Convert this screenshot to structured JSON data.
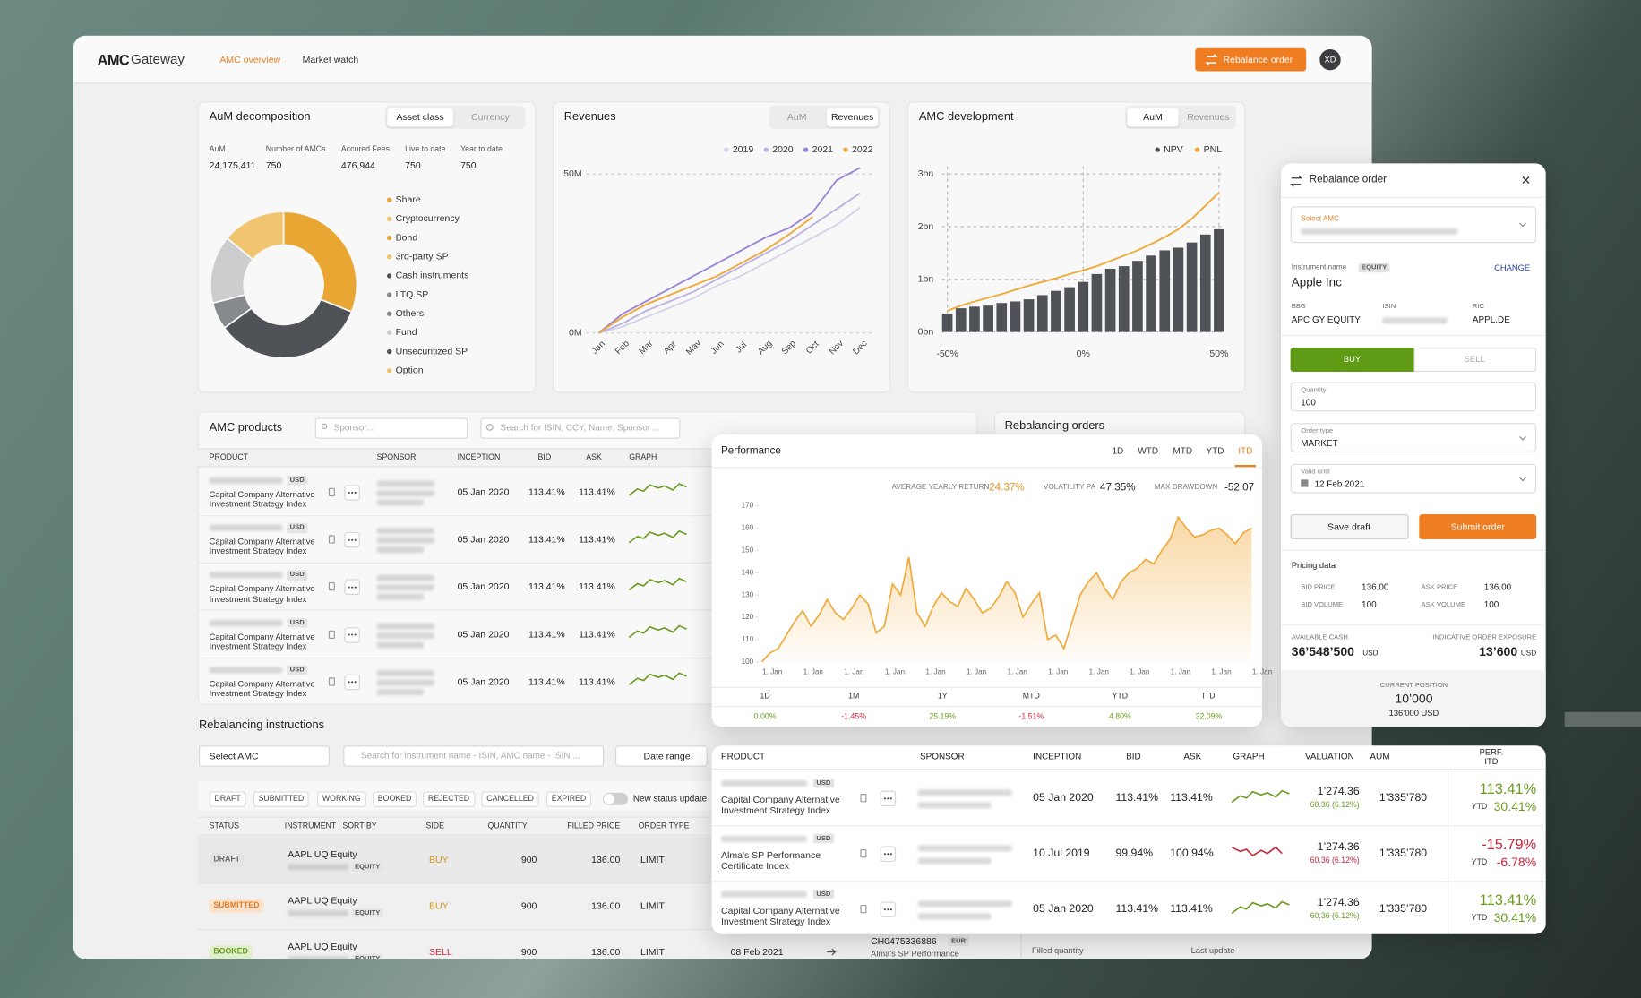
{
  "header": {
    "logo": [
      "AMC",
      "Gateway"
    ],
    "nav": [
      "AMC overview",
      "Market watch"
    ],
    "button": "Rebalance order",
    "avatar": "XD"
  },
  "aum": {
    "title": "AuM decomposition",
    "tabs": [
      "Asset class",
      "Currency"
    ],
    "stats": [
      [
        "AuM",
        "24,175,411"
      ],
      [
        "Number of AMCs",
        "750"
      ],
      [
        "Accured Fees",
        "476,944"
      ],
      [
        "Live to date",
        "750"
      ],
      [
        "Year to date",
        "750"
      ]
    ]
  },
  "revenues": {
    "title": "Revenues",
    "tabs": [
      "AuM",
      "Revenues"
    ]
  },
  "development": {
    "title": "AMC development",
    "tabs": [
      "AuM",
      "Revenues"
    ]
  },
  "chart_data": [
    {
      "type": "pie",
      "categories": [
        "Share",
        "Cryptocurrency",
        "Bond",
        "3rd-party SP",
        "Cash instruments",
        "LTQ SP",
        "Others",
        "Fund",
        "Unsecuritized SP",
        "Option"
      ],
      "values": [
        31,
        0,
        0,
        0,
        34,
        6,
        0,
        15,
        0,
        14
      ],
      "colors": [
        "#eaa632",
        "#f1c46f",
        "#eaa632",
        "#f1c46f",
        "#4f5358",
        "#86898d",
        "#86898d",
        "#cbcdcf",
        "#4f5358",
        "#f1c46f"
      ]
    },
    {
      "type": "line",
      "categories": [
        "Jan",
        "Feb",
        "Mar",
        "Apr",
        "May",
        "Jun",
        "Jul",
        "Aug",
        "Sep",
        "Oct",
        "Nov",
        "Dec"
      ],
      "series": [
        {
          "name": "2019",
          "color": "#d6d3e8",
          "values": [
            0,
            2,
            5,
            8,
            11,
            15,
            18,
            22,
            26,
            30,
            34,
            39.5
          ]
        },
        {
          "name": "2020",
          "color": "#bcb3e2",
          "values": [
            0,
            3,
            7,
            10,
            13,
            17,
            21,
            25,
            29,
            34,
            39,
            44
          ]
        },
        {
          "name": "2021",
          "color": "#9a85d9",
          "values": [
            0,
            6,
            10,
            14,
            18,
            22,
            26,
            30,
            33,
            38,
            48,
            52
          ]
        },
        {
          "name": "2022",
          "color": "#f0a836",
          "values": [
            0,
            5,
            9,
            12,
            15,
            18,
            22,
            26,
            31,
            36.5,
            null,
            null
          ]
        }
      ],
      "ylim": [
        0,
        55
      ],
      "yticks": [
        {
          "value": 0,
          "label": "0M"
        },
        {
          "value": 50,
          "label": "50M"
        }
      ],
      "grid": true
    },
    {
      "type": "bar",
      "x": [
        -50,
        -45,
        -40,
        -35,
        -30,
        -25,
        -20,
        -15,
        -10,
        -5,
        0,
        5,
        10,
        15,
        20,
        25,
        30,
        35,
        40,
        45,
        50
      ],
      "series": [
        {
          "name": "NPV",
          "color": "#4f5358",
          "values": [
            0.35,
            0.45,
            0.48,
            0.5,
            0.55,
            0.58,
            0.62,
            0.7,
            0.78,
            0.85,
            0.95,
            1.1,
            1.2,
            1.25,
            1.35,
            1.45,
            1.55,
            1.6,
            1.7,
            1.85,
            1.95
          ]
        },
        {
          "name": "PNL",
          "color": "#f0a836",
          "type": "line",
          "values": [
            0.4,
            0.5,
            0.58,
            0.65,
            0.72,
            0.8,
            0.88,
            0.95,
            1.02,
            1.1,
            1.17,
            1.25,
            1.35,
            1.45,
            1.55,
            1.67,
            1.8,
            1.95,
            2.15,
            2.4,
            2.65
          ]
        }
      ],
      "xlim": [
        -52,
        52
      ],
      "ylim": [
        0,
        3.15
      ],
      "xticks": [
        {
          "value": -50,
          "label": "-50%"
        },
        {
          "value": 0,
          "label": "0%"
        },
        {
          "value": 50,
          "label": "50%"
        }
      ],
      "yticks": [
        {
          "value": 0,
          "label": "0bn"
        },
        {
          "value": 1,
          "label": "1bn"
        },
        {
          "value": 2,
          "label": "2bn"
        },
        {
          "value": 3,
          "label": "3bn"
        }
      ],
      "grid": true
    },
    {
      "type": "area",
      "categories": [
        "1. Jan",
        null,
        null,
        null,
        null,
        "1. Jan",
        null,
        null,
        null,
        null,
        "1. Jan",
        null,
        null,
        null,
        null,
        "1. Jan",
        null,
        null,
        null,
        null,
        "1. Jan",
        null,
        null,
        null,
        null,
        "1. Jan",
        null,
        null,
        null,
        null,
        "1. Jan",
        null,
        null,
        null,
        null,
        "1. Jan",
        null,
        null,
        null,
        null,
        "1. Jan",
        null,
        null,
        null,
        null,
        "1. Jan",
        null,
        null,
        null,
        null,
        "1. Jan",
        null,
        null,
        null,
        null,
        "1. Jan",
        null,
        null,
        null,
        null,
        "1. Jan"
      ],
      "values": [
        100,
        104,
        106,
        112,
        118,
        123,
        116,
        121,
        128,
        122,
        119,
        124,
        130,
        126,
        113,
        116,
        135,
        130,
        147,
        122,
        116,
        125,
        131,
        127,
        125,
        133,
        128,
        122,
        124,
        129,
        136,
        131,
        120,
        126,
        131,
        110,
        112,
        106,
        118,
        130,
        136,
        140,
        133,
        128,
        136,
        140,
        142,
        146,
        144,
        150,
        155,
        165,
        160,
        156,
        157,
        159,
        160,
        157,
        153,
        158,
        160
      ],
      "color": "#f0a836",
      "ylim": [
        100,
        170
      ],
      "yticks": [
        100,
        110,
        120,
        130,
        140,
        150,
        160,
        170
      ]
    }
  ],
  "products": {
    "title": "AMC products",
    "sponsor_placeholder": "Sponsor...",
    "search_placeholder": "Search for ISIN, CCY, Name, Sponsor ...",
    "columns": [
      "PRODUCT",
      "SPONSOR",
      "INCEPTION",
      "BID",
      "ASK",
      "GRAPH"
    ],
    "rows": [
      {
        "ccy": "USD",
        "name": "Capital Company Alternative Investment Strategy Index",
        "inception": "05 Jan 2020",
        "bid": "113.41%",
        "ask": "113.41%"
      },
      {
        "ccy": "USD",
        "name": "Capital Company Alternative Investment Strategy Index",
        "inception": "05 Jan 2020",
        "bid": "113.41%",
        "ask": "113.41%"
      },
      {
        "ccy": "USD",
        "name": "Capital Company Alternative Investment Strategy Index",
        "inception": "05 Jan 2020",
        "bid": "113.41%",
        "ask": "113.41%"
      },
      {
        "ccy": "USD",
        "name": "Capital Company Alternative Investment Strategy Index",
        "inception": "05 Jan 2020",
        "bid": "113.41%",
        "ask": "113.41%"
      },
      {
        "ccy": "USD",
        "name": "Capital Company Alternative Investment Strategy Index",
        "inception": "05 Jan 2020",
        "bid": "113.41%",
        "ask": "113.41%"
      }
    ]
  },
  "orders": {
    "title": "Rebalancing orders"
  },
  "instructions": {
    "title": "Rebalancing instructions",
    "select": "Select AMC",
    "search": "Search for instrument name - ISIN, AMC name - ISIN ...",
    "date": "Date range",
    "filters": [
      "DRAFT",
      "SUBMITTED",
      "WORKING",
      "BOOKED",
      "REJECTED",
      "CANCELLED",
      "EXPIRED"
    ],
    "toggle": "New status update",
    "columns": [
      "STATUS",
      "INSTRUMENT : SORT BY",
      "SIDE",
      "QUANTITY",
      "FILLED PRICE",
      "ORDER TYPE"
    ],
    "rows": [
      {
        "status": "DRAFT",
        "status_color": "#6b6b6b",
        "status_bg": "#e2e2e2",
        "instrument": "AAPL UQ Equity",
        "tag": "EQUITY",
        "side": "BUY",
        "side_color": "#d19a1e",
        "quantity": "900",
        "price": "136.00",
        "type": "LIMIT"
      },
      {
        "status": "SUBMITTED",
        "status_color": "#e07a24",
        "status_bg": "#fde2cb",
        "instrument": "AAPL UQ Equity",
        "tag": "EQUITY",
        "side": "BUY",
        "side_color": "#d19a1e",
        "quantity": "900",
        "price": "136.00",
        "type": "LIMIT"
      },
      {
        "status": "BOOKED",
        "status_color": "#6a9b1e",
        "status_bg": "#e0efcb",
        "instrument": "AAPL UQ Equity",
        "tag": "EQUITY",
        "side": "SELL",
        "side_color": "#d0263c",
        "quantity": "900",
        "price": "136.00",
        "type": "LIMIT"
      }
    ],
    "detail": {
      "date": "08 Feb 2021",
      "isin": "CH0475336886",
      "ccy": "EUR",
      "name": "Alma's SP Performance",
      "filled": "Filled quantity",
      "last": "Last update"
    }
  },
  "performance": {
    "title": "Performance",
    "tabs": [
      "1D",
      "WTD",
      "MTD",
      "YTD",
      "ITD"
    ],
    "stats": [
      [
        "AVERAGE YEARLY RETURN",
        "24.37%",
        "#e8901f"
      ],
      [
        "VOLATILITY PA",
        "47.35%",
        "#222222"
      ],
      [
        "MAX DRAWDOWN",
        "-52.07",
        "#222222"
      ]
    ],
    "periods": [
      [
        "1D",
        "0.00%",
        "#6a9b1e"
      ],
      [
        "1M",
        "-1.45%",
        "#d0263c"
      ],
      [
        "1Y",
        "25.19%",
        "#6a9b1e"
      ],
      [
        "MTD",
        "-1.51%",
        "#d0263c"
      ],
      [
        "YTD",
        "4.80%",
        "#6a9b1e"
      ],
      [
        "ITD",
        "32.09%",
        "#6a9b1e"
      ]
    ]
  },
  "order": {
    "title": "Rebalance order",
    "select_label": "Select AMC",
    "instrument_label": "Instrument name",
    "instrument_tag": "EQUITY",
    "change": "CHANGE",
    "instrument": "Apple Inc",
    "ids": [
      [
        "BBG",
        "APC GY EQUITY"
      ],
      [
        "ISIN",
        null
      ],
      [
        "RIC",
        "APPL.DE"
      ]
    ],
    "buy": "BUY",
    "sell": "SELL",
    "fields": [
      [
        "Quantity",
        "100"
      ],
      [
        "Order type",
        "MARKET"
      ],
      [
        "Valid until",
        "12 Feb 2021"
      ]
    ],
    "save": "Save draft",
    "submit": "Submit order",
    "pricing_title": "Pricing data",
    "pricing": [
      [
        "BID PRICE",
        "136.00"
      ],
      [
        "ASK PRICE",
        "136.00"
      ],
      [
        "BID VOLUME",
        "100"
      ],
      [
        "ASK VOLUME",
        "100"
      ]
    ],
    "cash_label": "AVAILABLE CASH",
    "cash": "36’548’500",
    "cash_ccy": "USD",
    "exposure_label": "INDICATIVE ORDER EXPOSURE",
    "exposure": "13’600",
    "exposure_ccy": "USD",
    "position_label": "CURRENT POSITION",
    "position": "10’000",
    "position_value": "136’000 USD"
  },
  "table": {
    "columns": [
      "PRODUCT",
      "SPONSOR",
      "INCEPTION",
      "BID",
      "ASK",
      "GRAPH",
      "VALUATION",
      "AUM",
      "PERF. ITD"
    ],
    "ytd_label": "YTD",
    "rows": [
      {
        "ccy": "USD",
        "name": "Capital Company Alternative Investment Strategy Index",
        "inception": "05 Jan 2020",
        "bid": "113.41%",
        "ask": "113.41%",
        "valuation": "1’274.36",
        "change": "60.36 (6.12%)",
        "aum": "1’335’780",
        "perf": "113.41%",
        "ytd": "30.41%",
        "color": "#6a9b1e"
      },
      {
        "ccy": "USD",
        "name": "Alma's SP Performance Certificate Index",
        "inception": "10 Jul 2019",
        "bid": "99.94%",
        "ask": "100.94%",
        "valuation": "1’274.36",
        "change": "60.36 (6.12%)",
        "aum": "1’335’780",
        "perf": "-15.79%",
        "ytd": "-6.78%",
        "color": "#c8243a"
      },
      {
        "ccy": "USD",
        "name": "Capital Company Alternative Investment Strategy Index",
        "inception": "05 Jan 2020",
        "bid": "113.41%",
        "ask": "113.41%",
        "valuation": "1’274.36",
        "change": "60.36 (6.12%)",
        "aum": "1’335’780",
        "perf": "113.41%",
        "ytd": "30.41%",
        "color": "#6a9b1e"
      }
    ]
  }
}
